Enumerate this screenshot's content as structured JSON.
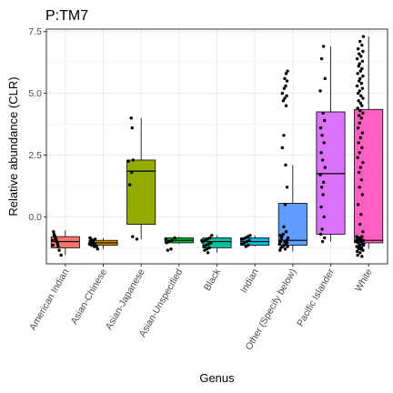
{
  "chart_data": {
    "type": "box",
    "title": "P:TM7",
    "xlabel": "Genus",
    "ylabel": "Relative abundance (CLR)",
    "ylim": [
      -1.9,
      7.6
    ],
    "yticks": [
      0.0,
      2.5,
      5.0,
      7.5
    ],
    "ytick_labels": [
      "0.0",
      "2.5",
      "5.0",
      "7.5"
    ],
    "grid": true,
    "legend": "none",
    "categories": [
      "American Indian",
      "Asian-Chinese",
      "Asian-Japanese",
      "Asian-Unspecified",
      "Black",
      "Indian",
      "Other (Specify below)",
      "Pacific Islander",
      "White"
    ],
    "colors": [
      "#F8766D",
      "#D39200",
      "#93AA00",
      "#00BA38",
      "#00C19F",
      "#00B9E3",
      "#619CFF",
      "#DB72FB",
      "#FF61C3"
    ],
    "boxes": [
      {
        "q1": -1.25,
        "median": -1.0,
        "q3": -0.8,
        "whisker_low": -1.55,
        "whisker_high": -0.55
      },
      {
        "q1": -1.15,
        "median": -1.05,
        "q3": -0.95,
        "whisker_low": -1.3,
        "whisker_high": -0.85
      },
      {
        "q1": -0.3,
        "median": 1.85,
        "q3": 2.3,
        "whisker_low": -0.9,
        "whisker_high": 4.0
      },
      {
        "q1": -1.05,
        "median": -0.95,
        "q3": -0.85,
        "whisker_low": -1.1,
        "whisker_high": -0.8
      },
      {
        "q1": -1.25,
        "median": -1.0,
        "q3": -0.85,
        "whisker_low": -1.45,
        "whisker_high": -0.75
      },
      {
        "q1": -1.15,
        "median": -1.0,
        "q3": -0.85,
        "whisker_low": -1.2,
        "whisker_high": -0.75
      },
      {
        "q1": -1.15,
        "median": -0.95,
        "q3": 0.55,
        "whisker_low": -1.4,
        "whisker_high": 2.1
      },
      {
        "q1": -0.7,
        "median": 1.75,
        "q3": 4.25,
        "whisker_low": -1.0,
        "whisker_high": 6.9
      },
      {
        "q1": -1.05,
        "median": -0.95,
        "q3": 4.35,
        "whisker_low": -1.3,
        "whisker_high": 7.3
      }
    ],
    "points": [
      [
        [
          -1.55,
          -0.45
        ],
        [
          -1.35,
          -0.65
        ],
        [
          -1.2,
          -0.75
        ],
        [
          -1.1,
          -0.8
        ],
        [
          -1.05,
          -0.85
        ],
        [
          -1.0,
          -0.9
        ],
        [
          -0.95,
          -0.95
        ],
        [
          -0.9,
          -1.0
        ],
        [
          -0.85,
          -1.05
        ],
        [
          -0.8,
          -1.1
        ],
        [
          -0.75,
          -1.15
        ],
        [
          -0.7,
          -1.2
        ],
        [
          -0.6,
          -1.25
        ],
        [
          -1.15,
          -1.3
        ],
        [
          -0.95,
          -1.35
        ]
      ],
      [
        [
          -1.3,
          -0.6
        ],
        [
          -1.2,
          -0.7
        ],
        [
          -1.15,
          -0.8
        ],
        [
          -1.1,
          -0.9
        ],
        [
          -1.05,
          -1.0
        ],
        [
          -1.0,
          -1.1
        ],
        [
          -0.95,
          -1.2
        ],
        [
          -0.9,
          -1.3
        ],
        [
          -0.85,
          -1.4
        ],
        [
          -1.1,
          -1.45
        ],
        [
          -1.0,
          -1.35
        ],
        [
          -1.15,
          -1.25
        ],
        [
          -1.05,
          -1.15
        ],
        [
          -0.95,
          -1.05
        ],
        [
          -1.2,
          -0.95
        ],
        [
          -0.9,
          -0.85
        ]
      ],
      [
        [
          -0.9,
          -0.45
        ],
        [
          -0.8,
          -0.9
        ],
        [
          1.3,
          -1.2
        ],
        [
          1.8,
          -1.0
        ],
        [
          2.3,
          -0.85
        ],
        [
          2.25,
          -1.35
        ],
        [
          3.6,
          -0.95
        ],
        [
          4.0,
          -1.05
        ]
      ],
      [
        [
          -0.85,
          -0.45
        ],
        [
          -0.95,
          -0.75
        ],
        [
          -1.0,
          -1.05
        ],
        [
          -1.05,
          -1.3
        ],
        [
          -1.3,
          -0.85
        ],
        [
          -1.35,
          -1.2
        ],
        [
          -0.9,
          -1.4
        ]
      ],
      [
        [
          -0.75,
          -0.55
        ],
        [
          -0.85,
          -0.75
        ],
        [
          -0.9,
          -1.0
        ],
        [
          -0.95,
          -1.25
        ],
        [
          -1.0,
          -1.45
        ],
        [
          -1.05,
          -0.65
        ],
        [
          -1.1,
          -0.9
        ],
        [
          -1.15,
          -1.15
        ],
        [
          -1.2,
          -1.35
        ],
        [
          -1.25,
          -0.8
        ],
        [
          -1.3,
          -1.05
        ],
        [
          -1.35,
          -1.3
        ],
        [
          -1.45,
          -0.95
        ],
        [
          -1.0,
          -1.55
        ],
        [
          -0.95,
          -1.6
        ]
      ],
      [
        [
          -0.75,
          -0.5
        ],
        [
          -0.8,
          -0.75
        ],
        [
          -0.85,
          -1.0
        ],
        [
          -0.9,
          -1.25
        ],
        [
          -0.95,
          -0.6
        ],
        [
          -1.0,
          -0.85
        ],
        [
          -1.05,
          -1.1
        ],
        [
          -1.1,
          -1.35
        ],
        [
          -1.15,
          -0.7
        ],
        [
          -1.2,
          -0.95
        ],
        [
          -0.9,
          -1.4
        ]
      ],
      [
        [
          5.9,
          -0.55
        ],
        [
          5.8,
          -0.7
        ],
        [
          5.6,
          -0.85
        ],
        [
          5.5,
          -0.6
        ],
        [
          5.3,
          -0.75
        ],
        [
          5.2,
          -0.9
        ],
        [
          5.0,
          -1.1
        ],
        [
          4.9,
          -0.65
        ],
        [
          4.8,
          -0.85
        ],
        [
          4.7,
          -1.0
        ],
        [
          4.5,
          -0.7
        ],
        [
          3.3,
          -0.95
        ],
        [
          2.8,
          -1.1
        ],
        [
          2.1,
          -0.75
        ],
        [
          1.2,
          -0.6
        ],
        [
          0.5,
          -0.8
        ],
        [
          -0.4,
          -0.95
        ],
        [
          -0.6,
          -0.7
        ],
        [
          -0.7,
          -1.0
        ],
        [
          -0.8,
          -1.15
        ],
        [
          -0.9,
          -1.2
        ],
        [
          -1.0,
          -1.3
        ],
        [
          -1.05,
          -0.6
        ],
        [
          -1.1,
          -0.75
        ],
        [
          -1.15,
          -0.9
        ],
        [
          -1.2,
          -1.05
        ],
        [
          -1.25,
          -1.25
        ],
        [
          -1.3,
          -0.8
        ],
        [
          -1.35,
          -1.35
        ],
        [
          -0.85,
          -0.5
        ],
        [
          -0.95,
          -0.65
        ],
        [
          -1.0,
          -0.85
        ],
        [
          -1.1,
          -1.4
        ],
        [
          -1.2,
          -0.55
        ],
        [
          -0.75,
          -1.3
        ]
      ],
      [
        [
          6.9,
          -0.75
        ],
        [
          6.4,
          -0.95
        ],
        [
          5.6,
          -0.6
        ],
        [
          5.1,
          -1.1
        ],
        [
          4.2,
          -0.8
        ],
        [
          3.9,
          -0.65
        ],
        [
          3.6,
          -1.05
        ],
        [
          3.3,
          -0.9
        ],
        [
          3.0,
          -0.7
        ],
        [
          2.6,
          -1.0
        ],
        [
          2.3,
          -0.85
        ],
        [
          2.0,
          -0.6
        ],
        [
          1.7,
          -1.1
        ],
        [
          1.4,
          -0.75
        ],
        [
          1.2,
          -0.95
        ],
        [
          0.9,
          -0.8
        ],
        [
          0.4,
          -1.0
        ],
        [
          0.0,
          -0.7
        ],
        [
          -0.5,
          -0.9
        ],
        [
          -0.7,
          -1.05
        ],
        [
          -0.85,
          -0.65
        ],
        [
          -1.0,
          -0.85
        ]
      ],
      [
        [
          7.3,
          -0.55
        ],
        [
          7.1,
          -0.9
        ],
        [
          6.95,
          -0.7
        ],
        [
          6.8,
          -1.1
        ],
        [
          6.7,
          -0.6
        ],
        [
          6.6,
          -1.0
        ],
        [
          6.5,
          -0.8
        ],
        [
          6.4,
          -1.2
        ],
        [
          6.3,
          -0.65
        ],
        [
          6.2,
          -0.95
        ],
        [
          6.1,
          -1.05
        ],
        [
          6.0,
          -0.7
        ],
        [
          5.9,
          -0.85
        ],
        [
          5.8,
          -1.15
        ],
        [
          5.7,
          -0.6
        ],
        [
          5.6,
          -0.9
        ],
        [
          5.5,
          -1.0
        ],
        [
          5.4,
          -0.75
        ],
        [
          5.3,
          -1.2
        ],
        [
          5.2,
          -0.65
        ],
        [
          5.1,
          -0.95
        ],
        [
          5.0,
          -1.1
        ],
        [
          4.9,
          -0.8
        ],
        [
          4.8,
          -0.6
        ],
        [
          4.7,
          -1.05
        ],
        [
          4.6,
          -0.85
        ],
        [
          4.5,
          -0.7
        ],
        [
          4.4,
          -1.15
        ],
        [
          4.3,
          -0.9
        ],
        [
          4.2,
          -0.6
        ],
        [
          4.1,
          -1.0
        ],
        [
          4.0,
          -0.75
        ],
        [
          3.8,
          -0.95
        ],
        [
          3.6,
          -1.1
        ],
        [
          3.4,
          -0.65
        ],
        [
          3.2,
          -0.85
        ],
        [
          3.0,
          -1.05
        ],
        [
          2.8,
          -0.7
        ],
        [
          2.6,
          -0.95
        ],
        [
          2.4,
          -1.15
        ],
        [
          2.2,
          -0.6
        ],
        [
          2.0,
          -0.85
        ],
        [
          1.8,
          -1.0
        ],
        [
          1.5,
          -0.75
        ],
        [
          1.2,
          -0.95
        ],
        [
          0.9,
          -0.65
        ],
        [
          0.5,
          -1.1
        ],
        [
          0.1,
          -0.8
        ],
        [
          -0.3,
          -0.9
        ],
        [
          -0.6,
          -0.6
        ],
        [
          -0.8,
          -0.7
        ],
        [
          -0.85,
          -1.0
        ],
        [
          -0.9,
          -1.2
        ],
        [
          -0.95,
          -0.55
        ],
        [
          -1.0,
          -0.8
        ],
        [
          -1.05,
          -1.1
        ],
        [
          -1.1,
          -0.65
        ],
        [
          -1.15,
          -0.95
        ],
        [
          -1.2,
          -1.25
        ],
        [
          -1.25,
          -0.75
        ],
        [
          -1.3,
          -1.05
        ],
        [
          -1.35,
          -0.6
        ],
        [
          -1.45,
          -0.9
        ],
        [
          -1.55,
          -1.15
        ],
        [
          -0.9,
          -0.85
        ],
        [
          -1.0,
          -1.3
        ],
        [
          -1.1,
          -0.5
        ],
        [
          -0.95,
          -1.15
        ],
        [
          -1.05,
          -0.7
        ],
        [
          -1.2,
          -0.95
        ],
        [
          -0.8,
          -1.25
        ],
        [
          -1.15,
          -0.55
        ],
        [
          -1.3,
          -0.8
        ],
        [
          -1.4,
          -1.2
        ],
        [
          -1.6,
          -0.7
        ]
      ]
    ]
  }
}
